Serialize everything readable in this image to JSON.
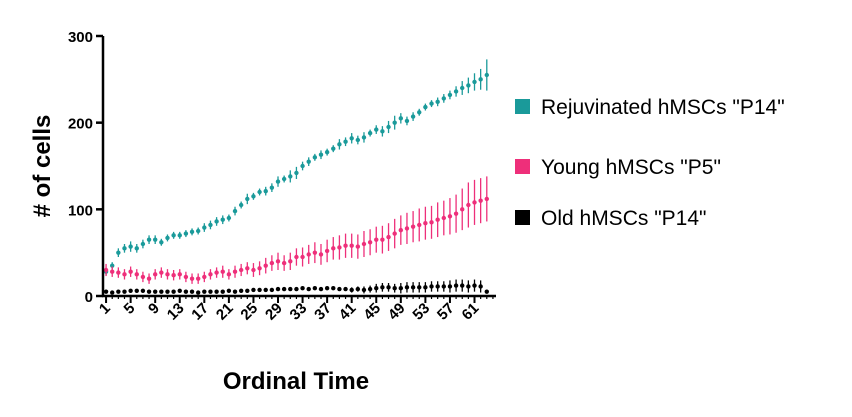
{
  "chart_data": {
    "type": "scatter",
    "title": "",
    "xlabel": "Ordinal Time",
    "ylabel": "# of cells",
    "xlim": [
      0.5,
      64.5
    ],
    "ylim": [
      0,
      300
    ],
    "yticks": [
      0,
      100,
      200,
      300
    ],
    "xticks": [
      1,
      5,
      9,
      13,
      17,
      21,
      25,
      29,
      33,
      37,
      41,
      45,
      49,
      53,
      57,
      61
    ],
    "grid": false,
    "legend_position": "right",
    "series": [
      {
        "name": "Rejuvinated hMSCs \"P14\"",
        "color": "#1a9a9a",
        "x": [
          1,
          2,
          3,
          4,
          5,
          6,
          7,
          8,
          9,
          10,
          11,
          12,
          13,
          14,
          15,
          16,
          17,
          18,
          19,
          20,
          21,
          22,
          23,
          24,
          25,
          26,
          27,
          28,
          29,
          30,
          31,
          32,
          33,
          34,
          35,
          36,
          37,
          38,
          39,
          40,
          41,
          42,
          43,
          44,
          45,
          46,
          47,
          48,
          49,
          50,
          51,
          52,
          53,
          54,
          55,
          56,
          57,
          58,
          59,
          60,
          61,
          62,
          63
        ],
        "y": [
          28,
          35,
          50,
          55,
          57,
          55,
          60,
          65,
          65,
          62,
          67,
          70,
          70,
          72,
          74,
          75,
          79,
          82,
          86,
          88,
          90,
          98,
          105,
          112,
          115,
          120,
          121,
          125,
          132,
          135,
          138,
          142,
          150,
          155,
          160,
          163,
          166,
          170,
          175,
          178,
          182,
          180,
          183,
          188,
          192,
          190,
          195,
          200,
          205,
          202,
          207,
          212,
          218,
          222,
          224,
          228,
          232,
          236,
          240,
          243,
          247,
          250,
          255
        ],
        "err": [
          4,
          4,
          5,
          5,
          6,
          5,
          5,
          5,
          5,
          4,
          4,
          4,
          4,
          4,
          4,
          4,
          5,
          5,
          5,
          5,
          4,
          5,
          4,
          6,
          4,
          4,
          5,
          5,
          6,
          4,
          7,
          7,
          5,
          5,
          4,
          5,
          4,
          4,
          6,
          5,
          6,
          5,
          6,
          4,
          5,
          6,
          7,
          8,
          6,
          5,
          5,
          4,
          4,
          4,
          5,
          5,
          5,
          6,
          8,
          9,
          10,
          12,
          18
        ]
      },
      {
        "name": "Young hMSCs \"P5\"",
        "color": "#ee2f7a",
        "x": [
          1,
          2,
          3,
          4,
          5,
          6,
          7,
          8,
          9,
          10,
          11,
          12,
          13,
          14,
          15,
          16,
          17,
          18,
          19,
          20,
          21,
          22,
          23,
          24,
          25,
          26,
          27,
          28,
          29,
          30,
          31,
          32,
          33,
          34,
          35,
          36,
          37,
          38,
          39,
          40,
          41,
          42,
          43,
          44,
          45,
          46,
          47,
          48,
          49,
          50,
          51,
          52,
          53,
          54,
          55,
          56,
          57,
          58,
          59,
          60,
          61,
          62,
          63
        ],
        "y": [
          30,
          28,
          27,
          25,
          28,
          25,
          22,
          20,
          25,
          27,
          25,
          24,
          25,
          22,
          20,
          20,
          22,
          25,
          27,
          28,
          25,
          28,
          30,
          32,
          30,
          32,
          35,
          38,
          40,
          38,
          40,
          45,
          45,
          48,
          50,
          48,
          52,
          55,
          56,
          58,
          58,
          57,
          60,
          62,
          65,
          65,
          68,
          72,
          76,
          78,
          80,
          82,
          84,
          85,
          88,
          90,
          92,
          95,
          100,
          105,
          108,
          110,
          112
        ],
        "err": [
          7,
          6,
          6,
          6,
          6,
          6,
          6,
          6,
          6,
          6,
          6,
          6,
          6,
          6,
          6,
          6,
          6,
          6,
          6,
          7,
          6,
          7,
          7,
          7,
          8,
          8,
          9,
          9,
          10,
          9,
          10,
          10,
          11,
          11,
          12,
          12,
          13,
          13,
          14,
          14,
          14,
          14,
          15,
          15,
          15,
          16,
          16,
          17,
          17,
          18,
          18,
          19,
          19,
          19,
          20,
          20,
          21,
          22,
          24,
          26,
          26,
          26,
          26
        ]
      },
      {
        "name": "Old hMSCs \"P14\"",
        "color": "#000000",
        "x": [
          1,
          2,
          3,
          4,
          5,
          6,
          7,
          8,
          9,
          10,
          11,
          12,
          13,
          14,
          15,
          16,
          17,
          18,
          19,
          20,
          21,
          22,
          23,
          24,
          25,
          26,
          27,
          28,
          29,
          30,
          31,
          32,
          33,
          34,
          35,
          36,
          37,
          38,
          39,
          40,
          41,
          42,
          43,
          44,
          45,
          46,
          47,
          48,
          49,
          50,
          51,
          52,
          53,
          54,
          55,
          56,
          57,
          58,
          59,
          60,
          61,
          62,
          63
        ],
        "y": [
          5,
          4,
          5,
          5,
          6,
          6,
          6,
          5,
          5,
          5,
          5,
          5,
          6,
          5,
          5,
          4,
          5,
          5,
          5,
          5,
          6,
          5,
          6,
          6,
          7,
          7,
          7,
          7,
          8,
          8,
          8,
          8,
          9,
          8,
          9,
          8,
          9,
          9,
          8,
          8,
          7,
          8,
          7,
          8,
          9,
          10,
          10,
          9,
          9,
          10,
          10,
          10,
          10,
          11,
          11,
          11,
          11,
          12,
          12,
          11,
          12,
          11,
          5
        ],
        "err": [
          1,
          1,
          1,
          1,
          1,
          1,
          1,
          1,
          1,
          1,
          1,
          1,
          1,
          1,
          1,
          1,
          1,
          1,
          1,
          1,
          1,
          1,
          1,
          1,
          1,
          1,
          1,
          1,
          1,
          1,
          1,
          1,
          1,
          1,
          1,
          1,
          2,
          2,
          2,
          2,
          3,
          3,
          4,
          4,
          5,
          5,
          5,
          5,
          6,
          6,
          6,
          6,
          6,
          6,
          6,
          6,
          7,
          7,
          7,
          7,
          7,
          7,
          2
        ]
      }
    ]
  }
}
